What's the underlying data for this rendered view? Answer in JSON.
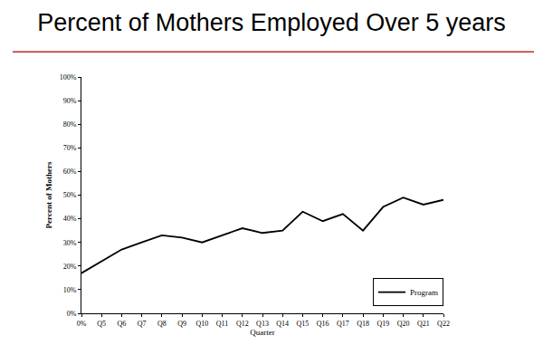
{
  "chart_data": {
    "type": "line",
    "title": "Percent of Mothers Employed Over 5 years",
    "x_label": "Quarter",
    "y_label": "Percent of Mothers",
    "categories": [
      "0%",
      "Q5",
      "Q6",
      "Q7",
      "Q8",
      "Q9",
      "Q10",
      "Q11",
      "Q12",
      "Q13",
      "Q14",
      "Q15",
      "Q16",
      "Q17",
      "Q18",
      "Q19",
      "Q20",
      "Q21",
      "Q22"
    ],
    "series": [
      {
        "name": "Program",
        "color": "#000000",
        "line_style": "solid",
        "values": [
          17,
          22,
          27,
          30,
          33,
          32,
          30,
          33,
          36,
          34,
          35,
          43,
          39,
          42,
          35,
          45,
          49,
          46,
          48
        ]
      }
    ],
    "ylim": [
      0,
      100
    ],
    "yticks": [
      {
        "value": 0,
        "label": "0%"
      },
      {
        "value": 10,
        "label": "10%"
      },
      {
        "value": 20,
        "label": "20%"
      },
      {
        "value": 30,
        "label": "30%"
      },
      {
        "value": 40,
        "label": "40%"
      },
      {
        "value": 50,
        "label": "50%"
      },
      {
        "value": 60,
        "label": "60%"
      },
      {
        "value": 70,
        "label": "70%"
      },
      {
        "value": 80,
        "label": "80%"
      },
      {
        "value": 90,
        "label": "90%"
      },
      {
        "value": 100,
        "label": "100%"
      }
    ],
    "grid": false,
    "legend": "lower right"
  }
}
